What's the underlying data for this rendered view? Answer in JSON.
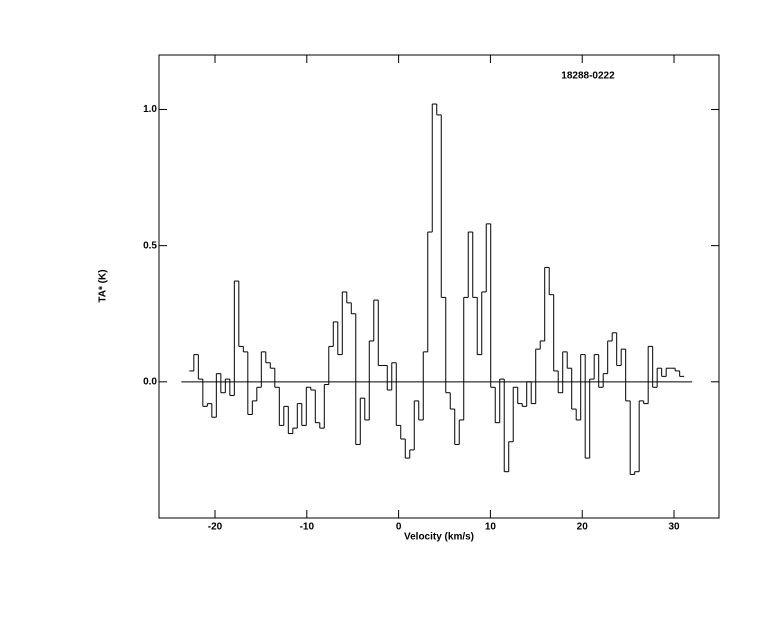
{
  "chart_data": {
    "type": "step",
    "title": "18288-0222",
    "x_label": "Velocity (km/s)",
    "y_label": "TA* (K)",
    "x": [
      -22.55,
      -22.06,
      -21.57,
      -21.08,
      -20.59,
      -20.1,
      -19.61,
      -19.12,
      -18.63,
      -18.14,
      -17.65,
      -17.16,
      -16.67,
      -16.18,
      -15.69,
      -15.2,
      -14.71,
      -14.22,
      -13.73,
      -13.24,
      -12.75,
      -12.26,
      -11.77,
      -11.28,
      -10.79,
      -10.3,
      -9.81,
      -9.32,
      -8.83,
      -8.34,
      -7.85,
      -7.36,
      -6.87,
      -6.38,
      -5.89,
      -5.4,
      -4.91,
      -4.42,
      -3.93,
      -3.44,
      -2.95,
      -2.46,
      -1.97,
      -1.48,
      -0.99,
      -0.5,
      -0.01,
      0.48,
      0.97,
      1.46,
      1.95,
      2.44,
      2.93,
      3.42,
      3.91,
      4.4,
      4.89,
      5.38,
      5.87,
      6.36,
      6.85,
      7.34,
      7.83,
      8.32,
      8.81,
      9.3,
      9.79,
      10.28,
      10.77,
      11.26,
      11.75,
      12.24,
      12.73,
      13.22,
      13.71,
      14.2,
      14.69,
      15.18,
      15.67,
      16.16,
      16.65,
      17.14,
      17.63,
      18.12,
      18.61,
      19.1,
      19.59,
      20.08,
      20.57,
      21.06,
      21.55,
      22.04,
      22.53,
      23.02,
      23.51,
      24.0,
      24.49,
      24.98,
      25.47,
      25.96,
      26.45,
      26.94,
      27.43,
      27.92,
      28.41,
      28.9,
      29.39,
      29.88,
      30.37,
      30.86
    ],
    "values": [
      0.04,
      0.1,
      0.01,
      -0.09,
      -0.08,
      -0.13,
      0.03,
      -0.04,
      0.01,
      -0.05,
      0.37,
      0.13,
      0.11,
      -0.12,
      -0.07,
      -0.02,
      0.11,
      0.07,
      0.05,
      -0.02,
      -0.16,
      -0.09,
      -0.19,
      -0.17,
      -0.08,
      -0.16,
      -0.02,
      -0.03,
      -0.15,
      -0.17,
      -0.01,
      0.13,
      0.22,
      0.1,
      0.33,
      0.29,
      0.25,
      -0.23,
      -0.06,
      -0.14,
      0.15,
      0.3,
      0.06,
      0.06,
      -0.03,
      0.07,
      -0.16,
      -0.21,
      -0.28,
      -0.25,
      -0.07,
      -0.14,
      0.11,
      0.55,
      1.02,
      0.98,
      0.31,
      -0.04,
      -0.1,
      -0.23,
      -0.14,
      0.31,
      0.55,
      0.31,
      0.1,
      0.33,
      0.58,
      -0.02,
      -0.15,
      0.01,
      -0.33,
      -0.22,
      -0.02,
      -0.08,
      -0.09,
      0.0,
      -0.08,
      0.12,
      0.15,
      0.42,
      0.32,
      0.04,
      -0.04,
      0.11,
      0.05,
      -0.1,
      -0.14,
      0.1,
      -0.28,
      0.01,
      0.1,
      -0.02,
      0.03,
      0.15,
      0.18,
      0.06,
      0.12,
      -0.07,
      -0.34,
      -0.33,
      -0.07,
      -0.08,
      0.13,
      -0.02,
      0.05,
      0.02,
      0.05,
      0.05,
      0.04,
      0.02
    ],
    "color": "#000000",
    "xlim": [
      -26.1,
      34.9
    ],
    "xticks": [
      -20,
      -10,
      0,
      10,
      20,
      30
    ],
    "ylim": [
      -0.5,
      1.2
    ],
    "yticks": [
      {
        "value": 0,
        "label": "0.0"
      },
      {
        "value": 0.5,
        "label": "0.5"
      },
      {
        "value": 1.0,
        "label": "1.0"
      }
    ]
  }
}
